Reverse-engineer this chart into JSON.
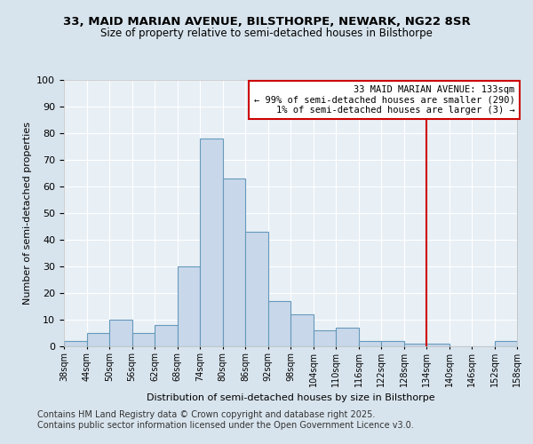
{
  "title1": "33, MAID MARIAN AVENUE, BILSTHORPE, NEWARK, NG22 8SR",
  "title2": "Size of property relative to semi-detached houses in Bilsthorpe",
  "xlabel": "Distribution of semi-detached houses by size in Bilsthorpe",
  "ylabel": "Number of semi-detached properties",
  "bin_edges": [
    38,
    44,
    50,
    56,
    62,
    68,
    74,
    80,
    86,
    92,
    98,
    104,
    110,
    116,
    122,
    128,
    134,
    140,
    146,
    152,
    158
  ],
  "bar_heights": [
    2,
    5,
    10,
    5,
    8,
    30,
    78,
    63,
    43,
    17,
    12,
    6,
    7,
    2,
    2,
    1,
    1,
    0,
    0,
    2
  ],
  "bar_color": "#c8d8ea",
  "bar_edge_color": "#6699bb",
  "vline_x": 134,
  "vline_color": "#cc0000",
  "annotation_title": "33 MAID MARIAN AVENUE: 133sqm",
  "annotation_line1": "← 99% of semi-detached houses are smaller (290)",
  "annotation_line2": "1% of semi-detached houses are larger (3) →",
  "annotation_box_color": "#cc0000",
  "ylim": [
    0,
    100
  ],
  "yticks": [
    0,
    10,
    20,
    30,
    40,
    50,
    60,
    70,
    80,
    90,
    100
  ],
  "tick_labels": [
    "38sqm",
    "44sqm",
    "50sqm",
    "56sqm",
    "62sqm",
    "68sqm",
    "74sqm",
    "80sqm",
    "86sqm",
    "92sqm",
    "98sqm",
    "104sqm",
    "110sqm",
    "116sqm",
    "122sqm",
    "128sqm",
    "134sqm",
    "140sqm",
    "146sqm",
    "152sqm",
    "158sqm"
  ],
  "footer1": "Contains HM Land Registry data © Crown copyright and database right 2025.",
  "footer2": "Contains public sector information licensed under the Open Government Licence v3.0.",
  "background_color": "#d8e4ed",
  "plot_bg_color": "#e8f0f6",
  "grid_color": "#ffffff",
  "title_fontsize": 9.5,
  "subtitle_fontsize": 8.5,
  "axis_label_fontsize": 8,
  "tick_fontsize": 7,
  "footer_fontsize": 7,
  "annot_fontsize": 7.5
}
